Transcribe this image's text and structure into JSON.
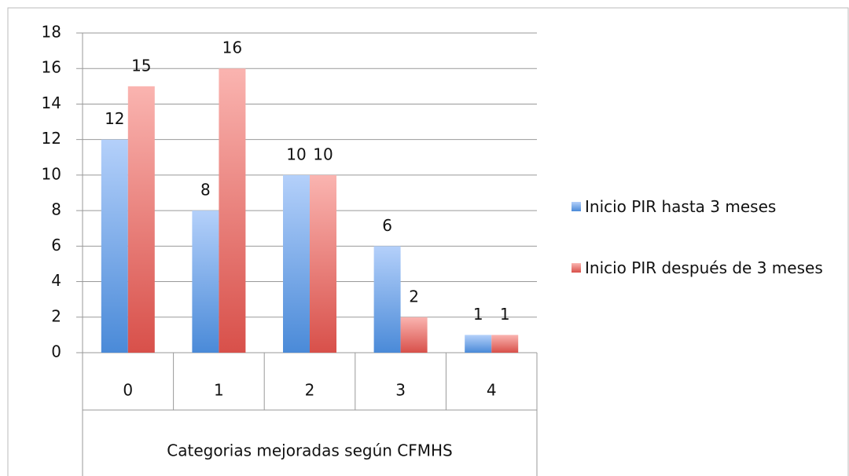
{
  "chart_data": {
    "type": "bar",
    "categories": [
      "0",
      "1",
      "2",
      "3",
      "4"
    ],
    "x_label": "Categorias mejoradas según CFMHS",
    "series": [
      {
        "name": "Inicio PIR hasta 3 meses",
        "color": "#4a8ad8",
        "values": [
          12,
          8,
          10,
          6,
          1
        ]
      },
      {
        "name": "Inicio PIR después de 3 meses",
        "color": "#d8504a",
        "values": [
          15,
          16,
          10,
          2,
          1
        ]
      }
    ],
    "ylim": [
      0,
      18
    ],
    "yticks": [
      0,
      2,
      4,
      6,
      8,
      10,
      12,
      14,
      16,
      18
    ],
    "grid": true,
    "legend": "right"
  }
}
